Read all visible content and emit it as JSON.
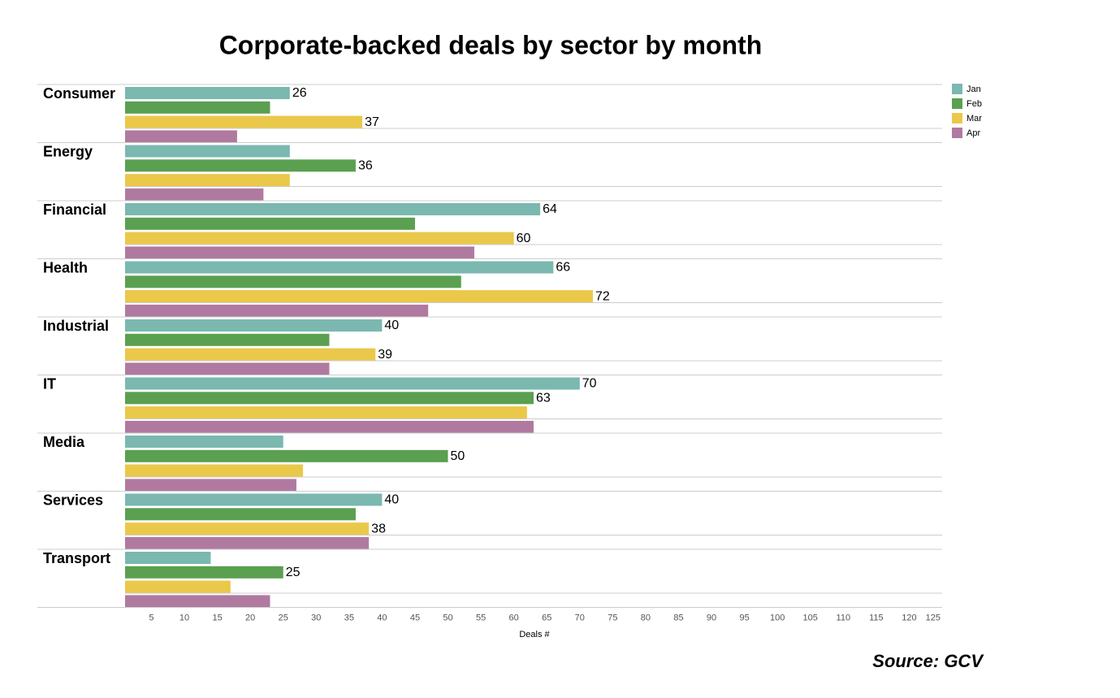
{
  "chart_data": {
    "type": "hbar",
    "title": "Corporate-backed deals by sector by month",
    "x_label": "Deals #",
    "source": "Source: GCV",
    "categories": [
      "Consumer",
      "Energy",
      "Financial",
      "Health",
      "Industrial",
      "IT",
      "Media",
      "Services",
      "Transport"
    ],
    "series": [
      {
        "name": "Jan",
        "color": "#7ab8b0",
        "values": [
          26,
          26,
          64,
          66,
          40,
          70,
          25,
          40,
          14
        ],
        "value_labels": [
          "26",
          null,
          "64",
          "66",
          "40",
          "70",
          null,
          "40",
          null
        ]
      },
      {
        "name": "Feb",
        "color": "#5aa050",
        "values": [
          23,
          36,
          45,
          52,
          32,
          63,
          50,
          36,
          25
        ],
        "value_labels": [
          null,
          "36",
          null,
          null,
          null,
          "63",
          "50",
          null,
          "25"
        ]
      },
      {
        "name": "Mar",
        "color": "#eac84a",
        "values": [
          37,
          26,
          60,
          72,
          39,
          62,
          28,
          38,
          17
        ],
        "value_labels": [
          "37",
          null,
          "60",
          "72",
          "39",
          null,
          null,
          "38",
          null
        ]
      },
      {
        "name": "Apr",
        "color": "#b07aa0",
        "values": [
          18,
          22,
          54,
          47,
          32,
          63,
          27,
          38,
          23
        ],
        "value_labels": [
          null,
          null,
          null,
          null,
          null,
          null,
          null,
          null,
          null
        ]
      }
    ],
    "xlim": [
      1,
      125
    ],
    "xticks": [
      5,
      10,
      15,
      20,
      25,
      30,
      35,
      40,
      45,
      50,
      55,
      60,
      65,
      70,
      75,
      80,
      85,
      90,
      95,
      100,
      105,
      110,
      115,
      120,
      125
    ],
    "legend": "top-right"
  }
}
